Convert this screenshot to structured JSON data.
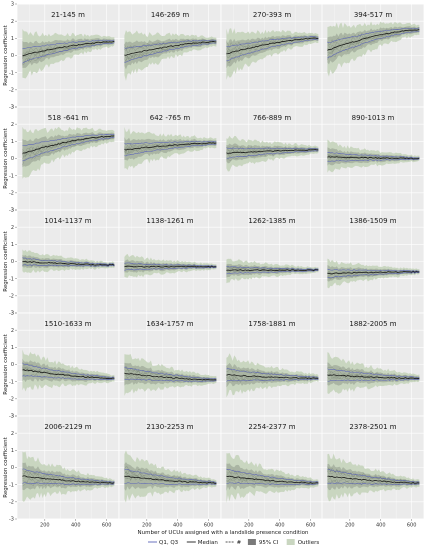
{
  "chart_data": {
    "type": "area",
    "layout": {
      "rows": 5,
      "cols": 4
    },
    "xlabel": "Number of UCUs assigned with a landslide presence condition",
    "ylabel": "Regression coefficient",
    "xlim": [
      20,
      680
    ],
    "xticks": [
      200,
      400,
      600
    ],
    "ylim": [
      -3,
      3
    ],
    "yticks": [
      -3,
      -2,
      -1,
      0,
      1,
      2,
      3
    ],
    "grid": true,
    "legend_position": "bottom",
    "legend": [
      {
        "label": "Q1, Q3",
        "kind": "line",
        "color": "#5b64b8"
      },
      {
        "label": "Median",
        "kind": "line",
        "color": "#1a1a1a"
      },
      {
        "label": "#",
        "kind": "dashed",
        "color": "#555555"
      },
      {
        "label": "95% CI",
        "kind": "fill",
        "color": "#7a7a7a"
      },
      {
        "label": "Outliers",
        "kind": "fill",
        "color": "#c9d6c0"
      }
    ],
    "colors": {
      "panel_bg": "#ebebeb",
      "grid": "#ffffff",
      "outlier_band": "#c9d6c0",
      "ci_band": "#8f9a8b",
      "quartile": "#5b64b8",
      "median": "#1a1a1a"
    },
    "panels": [
      {
        "title": "21-145 m",
        "start": 0.0,
        "end": 0.8,
        "spread_start": 1.4,
        "spread_end": 0.25
      },
      {
        "title": "146-269 m",
        "start": 0.0,
        "end": 0.8,
        "spread_start": 1.4,
        "spread_end": 0.25
      },
      {
        "title": "270-393 m",
        "start": 0.1,
        "end": 1.0,
        "spread_start": 1.4,
        "spread_end": 0.25
      },
      {
        "title": "394-517 m",
        "start": 0.3,
        "end": 1.5,
        "spread_start": 1.5,
        "spread_end": 0.3
      },
      {
        "title": "518 -641 m",
        "start": 0.3,
        "end": 1.3,
        "spread_start": 1.5,
        "spread_end": 0.3
      },
      {
        "title": "642 -765 m",
        "start": 0.5,
        "end": 0.9,
        "spread_start": 1.2,
        "spread_end": 0.25
      },
      {
        "title": "766-889 m",
        "start": 0.3,
        "end": 0.5,
        "spread_start": 1.0,
        "spread_end": 0.2
      },
      {
        "title": "890-1013 m",
        "start": 0.1,
        "end": 0.0,
        "spread_start": 0.9,
        "spread_end": 0.15
      },
      {
        "title": "1014-1137 m",
        "start": 0.0,
        "end": -0.2,
        "spread_start": 0.7,
        "spread_end": 0.15
      },
      {
        "title": "1138-1261 m",
        "start": -0.3,
        "end": -0.3,
        "spread_start": 0.7,
        "spread_end": 0.15
      },
      {
        "title": "1262-1385 m",
        "start": -0.5,
        "end": -0.5,
        "spread_start": 0.7,
        "spread_end": 0.15
      },
      {
        "title": "1386-1509 m",
        "start": -0.7,
        "end": -0.6,
        "spread_start": 0.8,
        "spread_end": 0.15
      },
      {
        "title": "1510-1633 m",
        "start": -0.3,
        "end": -0.8,
        "spread_start": 1.2,
        "spread_end": 0.2
      },
      {
        "title": "1634-1757 m",
        "start": -0.5,
        "end": -0.9,
        "spread_start": 1.2,
        "spread_end": 0.2
      },
      {
        "title": "1758-1881 m",
        "start": -0.6,
        "end": -0.8,
        "spread_start": 1.2,
        "spread_end": 0.2
      },
      {
        "title": "1882-2005 m",
        "start": -0.6,
        "end": -0.8,
        "spread_start": 1.2,
        "spread_end": 0.2
      },
      {
        "title": "2006-2129 m",
        "start": -0.5,
        "end": -0.9,
        "spread_start": 1.4,
        "spread_end": 0.2
      },
      {
        "title": "2130-2253 m",
        "start": -0.5,
        "end": -0.9,
        "spread_start": 1.4,
        "spread_end": 0.2
      },
      {
        "title": "2254-2377 m",
        "start": -0.5,
        "end": -0.9,
        "spread_start": 1.4,
        "spread_end": 0.2
      },
      {
        "title": "2378-2501 m",
        "start": -0.5,
        "end": -0.9,
        "spread_start": 1.4,
        "spread_end": 0.2
      }
    ]
  }
}
